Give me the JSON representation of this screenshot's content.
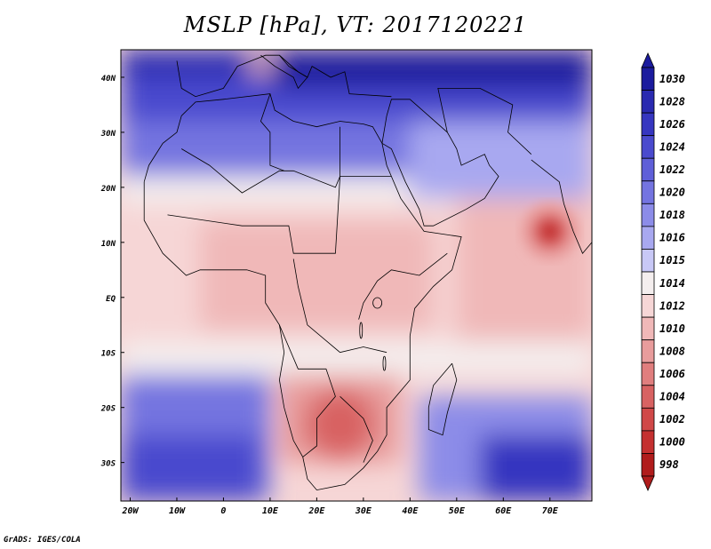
{
  "title": "MSLP [hPa], VT: 2017120221",
  "footer": "GrADS: IGES/COLA",
  "map": {
    "region": "Africa and Arabian Sea",
    "variable": "MSLP",
    "units": "hPa",
    "valid_time": "2017120221",
    "lon_ticks": [
      "20W",
      "10W",
      "0",
      "10E",
      "20E",
      "30E",
      "40E",
      "50E",
      "60E",
      "70E"
    ],
    "lat_ticks": [
      "40N",
      "30N",
      "20N",
      "10N",
      "EQ",
      "10S",
      "20S",
      "30S"
    ],
    "features": {
      "high_pressure": "Mediterranean / Middle East, 1024-1030 hPa",
      "low_pressure_cyclone": "Arabian Sea near 12N 70E, about 998-1000 hPa",
      "thermal_low": "Southern Africa around 20-30S, about 1004-1006 hPa"
    }
  },
  "colorbar": {
    "levels": [
      "1030",
      "1028",
      "1026",
      "1024",
      "1022",
      "1020",
      "1018",
      "1016",
      "1015",
      "1014",
      "1012",
      "1010",
      "1008",
      "1006",
      "1004",
      "1002",
      "1000",
      "998"
    ],
    "colors": [
      "#1b1b9e",
      "#2a2ab0",
      "#3636c0",
      "#4a4ace",
      "#5f5fd8",
      "#7474e0",
      "#8c8ce8",
      "#a8a8f0",
      "#c8c8f6",
      "#f4eeee",
      "#f6d6d6",
      "#f0b8b8",
      "#e89c9c",
      "#e07e7e",
      "#d86262",
      "#d04848",
      "#c43030",
      "#b01c1c"
    ]
  }
}
